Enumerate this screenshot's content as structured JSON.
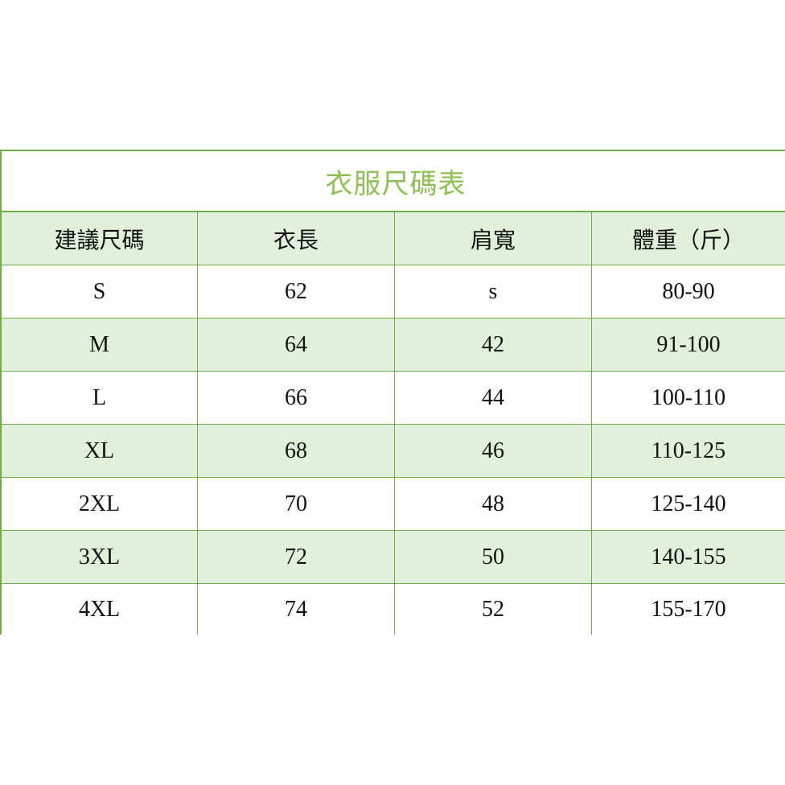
{
  "title": "衣服尺碼表",
  "headers": [
    "建議尺碼",
    "衣長",
    "肩寬",
    "體重（斤）"
  ],
  "rows": [
    [
      "S",
      "62",
      "s",
      "80-90"
    ],
    [
      "M",
      "64",
      "42",
      "91-100"
    ],
    [
      "L",
      "66",
      "44",
      "100-110"
    ],
    [
      "XL",
      "68",
      "46",
      "110-125"
    ],
    [
      "2XL",
      "70",
      "48",
      "125-140"
    ],
    [
      "3XL",
      "72",
      "50",
      "140-155"
    ],
    [
      "4XL",
      "74",
      "52",
      "155-170"
    ]
  ],
  "colors": {
    "border": "#70ad47",
    "title": "#8cc152",
    "band": "#e2efda"
  }
}
